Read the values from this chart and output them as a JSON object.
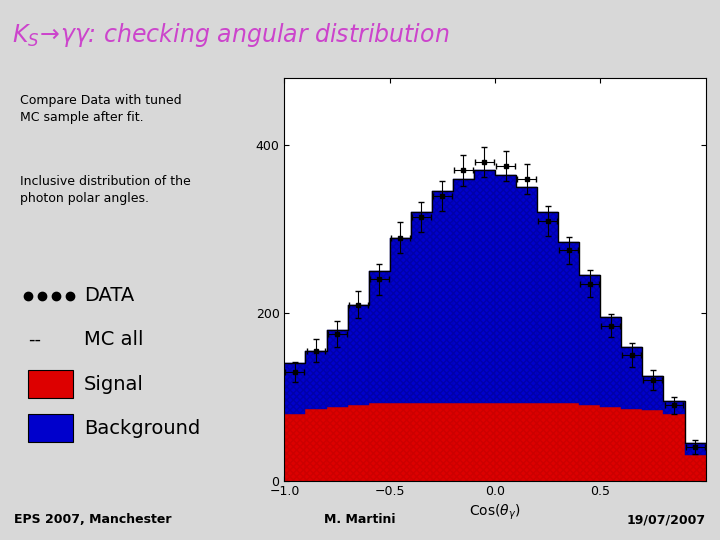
{
  "title": "$K_S\\!\\rightarrow\\!\\gamma\\gamma$: checking angular distribution",
  "title_color": "#cc44cc",
  "bg_color": "#d8d8d8",
  "plot_bg": "#ffffff",
  "xlabel": "$\\mathrm{Cos}(\\theta_{\\gamma})$",
  "xlim": [
    -1.0,
    1.0
  ],
  "ylim": [
    0,
    480
  ],
  "yticks": [
    0,
    200,
    400
  ],
  "xticks": [
    -1.0,
    -0.5,
    0.0,
    0.5
  ],
  "footer_left": "EPS 2007, Manchester",
  "footer_center": "M. Martini",
  "footer_right": "19/07/2007",
  "text1": "Compare Data with tuned\nMC sample after fit.",
  "text2": "Inclusive distribution of the\nphoton polar angles.",
  "signal_color": "#dd0000",
  "bkg_color": "#0000cc",
  "bar_centers": [
    -0.95,
    -0.85,
    -0.75,
    -0.65,
    -0.55,
    -0.45,
    -0.35,
    -0.25,
    -0.15,
    -0.05,
    0.05,
    0.15,
    0.25,
    0.35,
    0.45,
    0.55,
    0.65,
    0.75,
    0.85,
    0.95
  ],
  "bar_width": 0.1,
  "signal_values": [
    80,
    85,
    88,
    90,
    92,
    92,
    92,
    92,
    92,
    92,
    92,
    92,
    92,
    92,
    90,
    88,
    86,
    84,
    80,
    30
  ],
  "background_values": [
    140,
    155,
    180,
    210,
    250,
    290,
    320,
    345,
    360,
    370,
    365,
    350,
    320,
    285,
    245,
    195,
    160,
    125,
    95,
    45
  ],
  "mc_all_values": [
    140,
    155,
    180,
    210,
    250,
    290,
    320,
    345,
    360,
    370,
    365,
    350,
    320,
    285,
    245,
    195,
    160,
    125,
    95,
    45
  ],
  "data_values": [
    130,
    155,
    175,
    210,
    240,
    290,
    315,
    340,
    370,
    380,
    375,
    360,
    310,
    275,
    235,
    185,
    150,
    120,
    90,
    40
  ],
  "data_errors": [
    12,
    14,
    15,
    16,
    18,
    18,
    18,
    18,
    18,
    18,
    18,
    18,
    18,
    16,
    16,
    14,
    14,
    12,
    10,
    8
  ]
}
